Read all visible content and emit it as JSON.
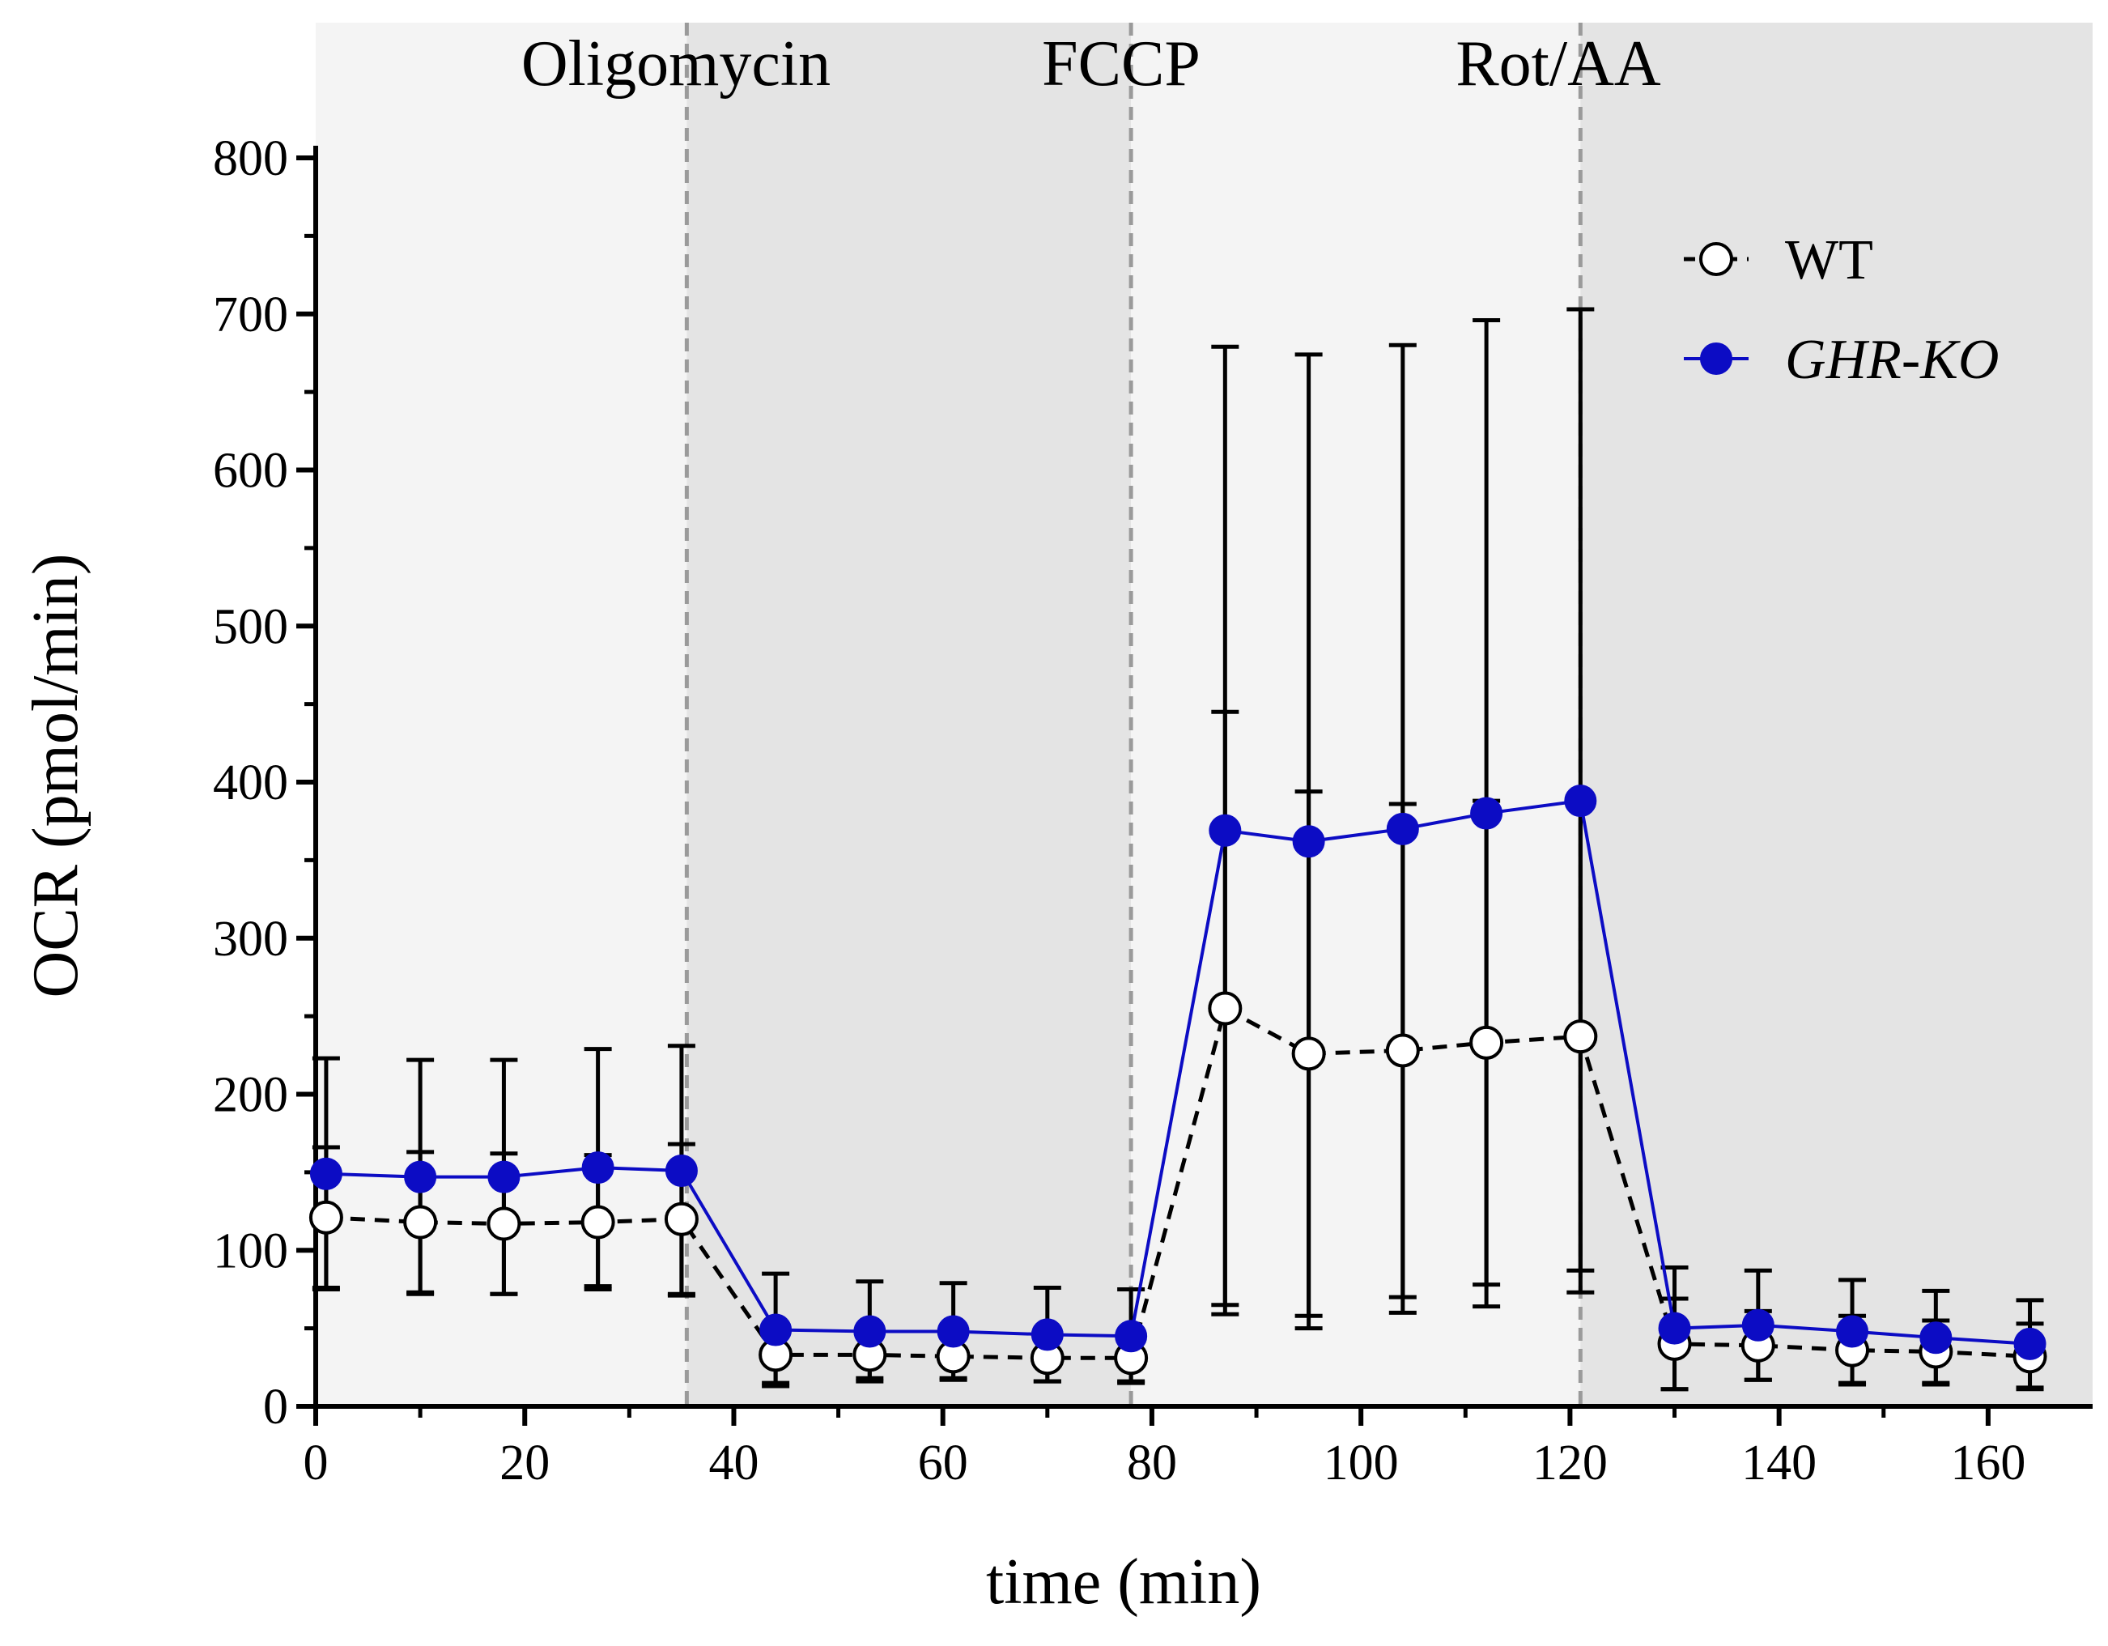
{
  "chart_data": {
    "type": "line",
    "title": "",
    "xlabel": "time (min)",
    "ylabel": "OCR (pmol/min)",
    "xlim": [
      0,
      170
    ],
    "ylim": [
      0,
      800
    ],
    "x_ticks": [
      0,
      20,
      40,
      60,
      80,
      100,
      120,
      140,
      160
    ],
    "y_ticks": [
      0,
      100,
      200,
      300,
      400,
      500,
      600,
      700,
      800
    ],
    "x_tick_labels": [
      "0",
      "20",
      "40",
      "60",
      "80",
      "100",
      "120",
      "140",
      "160"
    ],
    "y_tick_labels": [
      "0",
      "100",
      "200",
      "300",
      "400",
      "500",
      "600",
      "700",
      "800"
    ],
    "x": [
      1,
      10,
      18,
      27,
      35,
      44,
      53,
      61,
      70,
      78,
      87,
      95,
      104,
      112,
      121,
      130,
      138,
      147,
      155,
      164
    ],
    "injections": [
      {
        "label": "Oligomycin",
        "time": 35.5
      },
      {
        "label": "FCCP",
        "time": 78
      },
      {
        "label": "Rot/AA",
        "time": 121
      }
    ],
    "phase_shading": [
      {
        "from": 0,
        "to": 35.5,
        "color": "#f4f4f4"
      },
      {
        "from": 35.5,
        "to": 78,
        "color": "#e4e4e4"
      },
      {
        "from": 78,
        "to": 121,
        "color": "#f4f4f4"
      },
      {
        "from": 121,
        "to": 170,
        "color": "#e4e4e4"
      }
    ],
    "series": [
      {
        "name": "WT",
        "color": "#000000",
        "line_style": "dashed",
        "marker": "open-circle",
        "values": [
          121,
          118,
          117,
          118,
          120,
          33,
          33,
          32,
          31,
          31,
          255,
          226,
          228,
          233,
          237,
          40,
          39,
          36,
          35,
          32
        ],
        "error": [
          45,
          45,
          45,
          43,
          48,
          18,
          15,
          14,
          15,
          15,
          190,
          168,
          158,
          155,
          150,
          29,
          22,
          22,
          20,
          21
        ]
      },
      {
        "name": "GHR-KO",
        "color": "#0c0cc4",
        "line_style": "solid",
        "marker": "filled-circle",
        "values": [
          149,
          147,
          147,
          153,
          151,
          49,
          48,
          48,
          46,
          45,
          369,
          362,
          370,
          380,
          388,
          50,
          52,
          48,
          44,
          40
        ],
        "error": [
          74,
          75,
          75,
          76,
          80,
          36,
          32,
          31,
          30,
          30,
          310,
          312,
          310,
          316,
          315,
          39,
          35,
          33,
          30,
          28
        ]
      }
    ],
    "legend": {
      "position": "top-right",
      "entries": [
        "WT",
        "GHR-KO"
      ]
    }
  }
}
